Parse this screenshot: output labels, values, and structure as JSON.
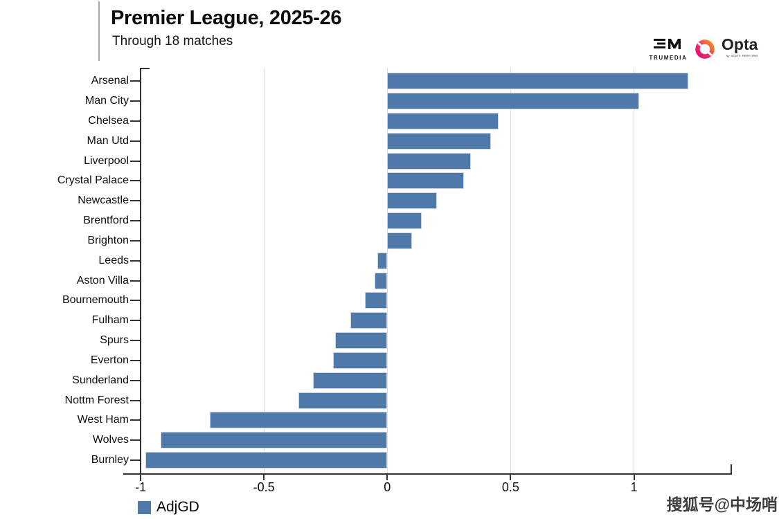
{
  "header": {
    "logos": {
      "trumedia_monogram": "TM",
      "trumedia_text": "TRUMEDIA",
      "opta_text": "Opta",
      "opta_subtext": "by STATS PERFORM"
    }
  },
  "chart_data": {
    "type": "bar",
    "orientation": "horizontal",
    "title": "Premier League, 2025-26",
    "subtitle": "Through 18 matches",
    "categories": [
      "Arsenal",
      "Man City",
      "Chelsea",
      "Man Utd",
      "Liverpool",
      "Crystal Palace",
      "Newcastle",
      "Brentford",
      "Brighton",
      "Leeds",
      "Aston Villa",
      "Bournemouth",
      "Fulham",
      "Spurs",
      "Everton",
      "Sunderland",
      "Nottm Forest",
      "West Ham",
      "Wolves",
      "Burnley"
    ],
    "series": [
      {
        "name": "AdjGD",
        "values": [
          1.22,
          1.02,
          0.45,
          0.42,
          0.34,
          0.31,
          0.2,
          0.14,
          0.1,
          -0.04,
          -0.05,
          -0.09,
          -0.15,
          -0.21,
          -0.22,
          -0.3,
          -0.36,
          -0.72,
          -0.92,
          -0.98
        ]
      }
    ],
    "x_ticks": {
      "values": [
        -1,
        -0.5,
        0,
        0.5,
        1
      ],
      "labels": [
        "-1",
        "-0.5",
        "0",
        "0.5",
        "1"
      ]
    },
    "xlim": [
      -1.07,
      1.4
    ],
    "grid": true,
    "legend_position": "bottom-left",
    "bar_color": "#4e79a8",
    "axis_color": "#323232",
    "grid_color": "#dcdcdc"
  },
  "legend": {
    "label": "AdjGD"
  },
  "watermark": {
    "text": "搜狐号@中场哨"
  }
}
